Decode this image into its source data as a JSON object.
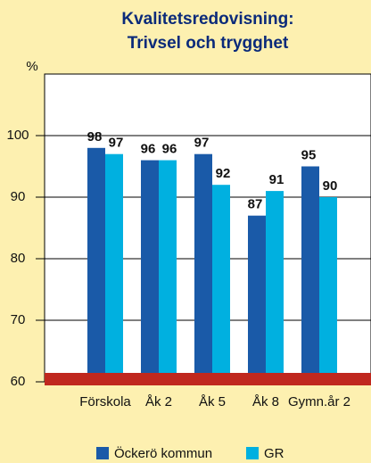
{
  "chart_data": {
    "type": "bar",
    "title": [
      "Kvalitetsredovisning:",
      "Trivsel och trygghet"
    ],
    "y_label": "%",
    "categories": [
      "Förskola",
      "Åk 2",
      "Åk 5",
      "Åk 8",
      "Gymn.år 2"
    ],
    "series": [
      {
        "name": "Öckerö kommun",
        "color": "#1a5aa8",
        "values": [
          98,
          96,
          97,
          87,
          95
        ]
      },
      {
        "name": "GR",
        "color": "#00b0e0",
        "values": [
          97,
          96,
          92,
          91,
          90
        ]
      }
    ],
    "ylim": [
      60,
      110
    ],
    "yticks": [
      60,
      70,
      80,
      90,
      100
    ],
    "grid": true
  }
}
